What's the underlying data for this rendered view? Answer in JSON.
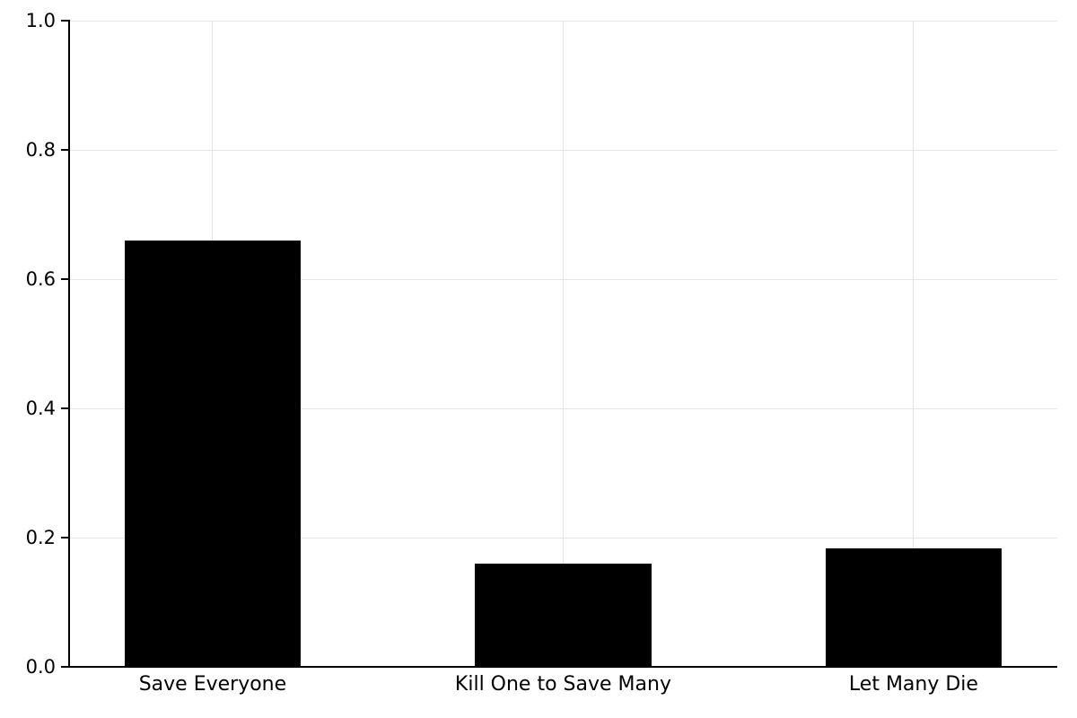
{
  "chart_data": {
    "type": "bar",
    "title": "",
    "xlabel": "",
    "ylabel": "",
    "categories": [
      "Save Everyone",
      "Kill One to Save Many",
      "Let Many Die"
    ],
    "values": [
      0.66,
      0.16,
      0.184
    ],
    "ylim": [
      0.0,
      1.0
    ],
    "yticks": [
      0.0,
      0.2,
      0.4,
      0.6,
      0.8,
      1.0
    ],
    "ytick_labels": [
      "0.0",
      "0.2",
      "0.4",
      "0.6",
      "0.8",
      "1.0"
    ],
    "grid": true,
    "legend": "none",
    "colors": {
      "bar": "#000000",
      "grid": "#e6e6e6",
      "axis": "#000000",
      "text": "#000000",
      "background": "#ffffff"
    },
    "layout": {
      "bar_centers_frac": [
        0.1445,
        0.4995,
        0.8545
      ],
      "bar_width_frac": 0.179
    }
  }
}
